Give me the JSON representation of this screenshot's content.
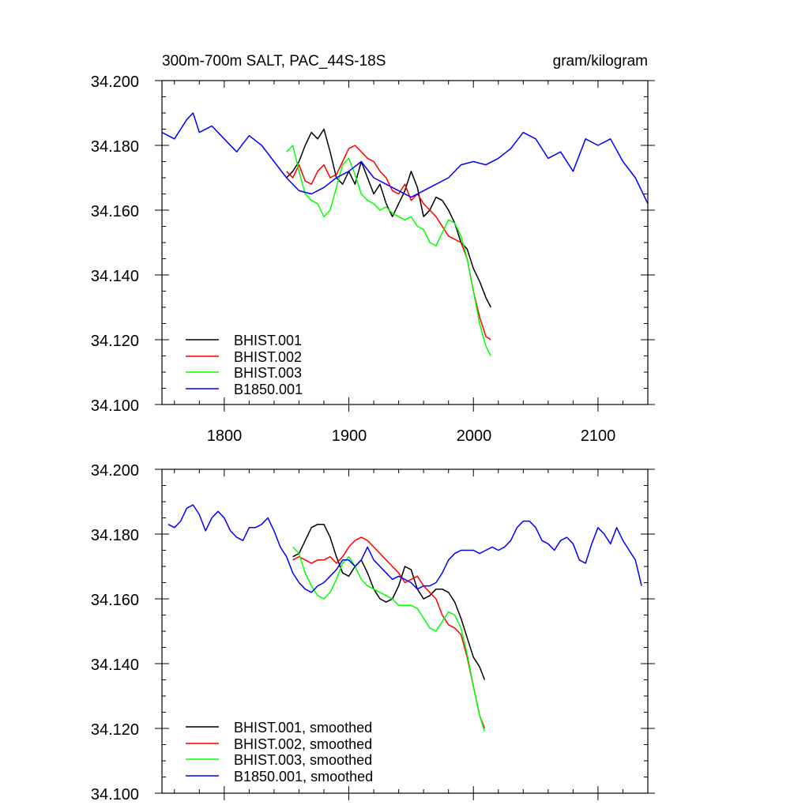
{
  "chart_data": [
    {
      "type": "line",
      "title": "300m-700m SALT, PAC_44S-18S",
      "units": "gram/kilogram",
      "xlim": [
        1750,
        2140
      ],
      "ylim": [
        34.1,
        34.2
      ],
      "x_ticks": [
        "1800",
        "1900",
        "2000",
        "2100"
      ],
      "y_ticks": [
        "34.100",
        "34.120",
        "34.140",
        "34.160",
        "34.180",
        "34.200"
      ],
      "grid": false,
      "legend_position": "bottom-left",
      "series": [
        {
          "name": "BHIST.001",
          "color": "#000000",
          "x": [
            1850,
            1855,
            1860,
            1865,
            1870,
            1875,
            1880,
            1885,
            1890,
            1895,
            1900,
            1905,
            1910,
            1915,
            1920,
            1925,
            1930,
            1935,
            1940,
            1945,
            1950,
            1955,
            1960,
            1965,
            1970,
            1975,
            1980,
            1985,
            1990,
            1995,
            2000,
            2005,
            2010,
            2014
          ],
          "y": [
            34.17,
            34.172,
            34.175,
            34.18,
            34.184,
            34.182,
            34.185,
            34.178,
            34.17,
            34.168,
            34.172,
            34.168,
            34.175,
            34.17,
            34.165,
            34.168,
            34.162,
            34.158,
            34.162,
            34.166,
            34.172,
            34.167,
            34.158,
            34.16,
            34.164,
            34.163,
            34.16,
            34.156,
            34.15,
            34.148,
            34.142,
            34.138,
            34.133,
            34.13
          ]
        },
        {
          "name": "BHIST.002",
          "color": "#ff0000",
          "x": [
            1850,
            1855,
            1860,
            1865,
            1870,
            1875,
            1880,
            1885,
            1890,
            1895,
            1900,
            1905,
            1910,
            1915,
            1920,
            1925,
            1930,
            1935,
            1940,
            1945,
            1950,
            1955,
            1960,
            1965,
            1970,
            1975,
            1980,
            1985,
            1990,
            1995,
            2000,
            2005,
            2010,
            2014
          ],
          "y": [
            34.172,
            34.17,
            34.174,
            34.169,
            34.168,
            34.172,
            34.174,
            34.17,
            34.171,
            34.175,
            34.179,
            34.18,
            34.178,
            34.176,
            34.175,
            34.172,
            34.17,
            34.166,
            34.165,
            34.168,
            34.163,
            34.165,
            34.162,
            34.16,
            34.158,
            34.155,
            34.152,
            34.151,
            34.15,
            34.145,
            34.135,
            34.127,
            34.121,
            34.12
          ]
        },
        {
          "name": "BHIST.003",
          "color": "#00ff00",
          "x": [
            1850,
            1855,
            1860,
            1865,
            1870,
            1875,
            1880,
            1885,
            1890,
            1895,
            1900,
            1905,
            1910,
            1915,
            1920,
            1925,
            1930,
            1935,
            1940,
            1945,
            1950,
            1955,
            1960,
            1965,
            1970,
            1975,
            1980,
            1985,
            1990,
            1995,
            2000,
            2005,
            2010,
            2014
          ],
          "y": [
            34.178,
            34.18,
            34.172,
            34.165,
            34.163,
            34.162,
            34.158,
            34.16,
            34.167,
            34.174,
            34.176,
            34.171,
            34.165,
            34.163,
            34.162,
            34.16,
            34.161,
            34.159,
            34.158,
            34.157,
            34.158,
            34.155,
            34.154,
            34.15,
            34.149,
            34.153,
            34.157,
            34.156,
            34.152,
            34.145,
            34.135,
            34.125,
            34.118,
            34.115
          ]
        },
        {
          "name": "B1850.001",
          "color": "#0000ff",
          "x": [
            1750,
            1760,
            1770,
            1775,
            1780,
            1790,
            1800,
            1810,
            1820,
            1830,
            1840,
            1850,
            1860,
            1870,
            1880,
            1890,
            1900,
            1910,
            1920,
            1930,
            1940,
            1950,
            1960,
            1970,
            1980,
            1990,
            2000,
            2010,
            2020,
            2030,
            2040,
            2050,
            2060,
            2070,
            2080,
            2090,
            2100,
            2110,
            2120,
            2130,
            2140
          ],
          "y": [
            34.184,
            34.182,
            34.188,
            34.19,
            34.184,
            34.186,
            34.182,
            34.178,
            34.183,
            34.18,
            34.175,
            34.17,
            34.166,
            34.165,
            34.167,
            34.17,
            34.172,
            34.175,
            34.17,
            34.168,
            34.166,
            34.164,
            34.166,
            34.168,
            34.17,
            34.174,
            34.175,
            34.174,
            34.176,
            34.179,
            34.184,
            34.182,
            34.176,
            34.178,
            34.172,
            34.182,
            34.18,
            34.182,
            34.175,
            34.17,
            34.162
          ]
        }
      ],
      "legend": [
        "BHIST.001",
        "BHIST.002",
        "BHIST.003",
        "B1850.001"
      ]
    },
    {
      "type": "line",
      "xlim": [
        1750,
        2140
      ],
      "ylim": [
        34.1,
        34.2
      ],
      "y_ticks": [
        "34.100",
        "34.120",
        "34.140",
        "34.160",
        "34.180",
        "34.200"
      ],
      "grid": false,
      "legend_position": "bottom-left",
      "series": [
        {
          "name": "BHIST.001, smoothed",
          "color": "#000000",
          "x": [
            1855,
            1860,
            1865,
            1870,
            1875,
            1880,
            1885,
            1890,
            1895,
            1900,
            1905,
            1910,
            1915,
            1920,
            1925,
            1930,
            1935,
            1940,
            1945,
            1950,
            1955,
            1960,
            1965,
            1970,
            1975,
            1980,
            1985,
            1990,
            1995,
            2000,
            2005,
            2009
          ],
          "y": [
            34.173,
            34.174,
            34.178,
            34.182,
            34.183,
            34.183,
            34.179,
            34.173,
            34.168,
            34.167,
            34.17,
            34.172,
            34.168,
            34.163,
            34.16,
            34.159,
            34.16,
            34.164,
            34.17,
            34.169,
            34.163,
            34.16,
            34.161,
            34.163,
            34.163,
            34.162,
            34.159,
            34.154,
            34.148,
            34.142,
            34.139,
            34.135
          ]
        },
        {
          "name": "BHIST.002, smoothed",
          "color": "#ff0000",
          "x": [
            1855,
            1860,
            1865,
            1870,
            1875,
            1880,
            1885,
            1890,
            1895,
            1900,
            1905,
            1910,
            1915,
            1920,
            1925,
            1930,
            1935,
            1940,
            1945,
            1950,
            1955,
            1960,
            1965,
            1970,
            1975,
            1980,
            1985,
            1990,
            1995,
            2000,
            2005,
            2009
          ],
          "y": [
            34.172,
            34.173,
            34.172,
            34.171,
            34.172,
            34.172,
            34.173,
            34.171,
            34.173,
            34.176,
            34.178,
            34.179,
            34.178,
            34.176,
            34.174,
            34.172,
            34.17,
            34.168,
            34.165,
            34.166,
            34.167,
            34.164,
            34.162,
            34.16,
            34.155,
            34.152,
            34.151,
            34.149,
            34.142,
            34.133,
            34.124,
            34.12
          ]
        },
        {
          "name": "BHIST.003, smoothed",
          "color": "#00ff00",
          "x": [
            1855,
            1860,
            1865,
            1870,
            1875,
            1880,
            1885,
            1890,
            1895,
            1900,
            1905,
            1910,
            1915,
            1920,
            1925,
            1930,
            1935,
            1940,
            1945,
            1950,
            1955,
            1960,
            1965,
            1970,
            1975,
            1980,
            1985,
            1990,
            1995,
            2000,
            2005,
            2009
          ],
          "y": [
            34.176,
            34.174,
            34.168,
            34.164,
            34.161,
            34.16,
            34.162,
            34.166,
            34.171,
            34.173,
            34.17,
            34.166,
            34.164,
            34.163,
            34.162,
            34.161,
            34.16,
            34.158,
            34.158,
            34.158,
            34.157,
            34.154,
            34.151,
            34.15,
            34.153,
            34.156,
            34.155,
            34.151,
            34.143,
            34.133,
            34.124,
            34.119
          ]
        },
        {
          "name": "B1850.001, smoothed",
          "color": "#0000ff",
          "x": [
            1755,
            1760,
            1765,
            1770,
            1775,
            1780,
            1785,
            1790,
            1795,
            1800,
            1805,
            1810,
            1815,
            1820,
            1825,
            1830,
            1835,
            1840,
            1845,
            1850,
            1855,
            1860,
            1865,
            1870,
            1875,
            1880,
            1885,
            1890,
            1895,
            1900,
            1905,
            1910,
            1915,
            1920,
            1925,
            1930,
            1935,
            1940,
            1945,
            1950,
            1955,
            1960,
            1965,
            1970,
            1975,
            1980,
            1985,
            1990,
            1995,
            2000,
            2005,
            2010,
            2015,
            2020,
            2025,
            2030,
            2035,
            2040,
            2045,
            2050,
            2055,
            2060,
            2065,
            2070,
            2075,
            2080,
            2085,
            2090,
            2095,
            2100,
            2105,
            2110,
            2115,
            2120,
            2125,
            2130,
            2135
          ],
          "y": [
            34.183,
            34.182,
            34.184,
            34.188,
            34.189,
            34.186,
            34.181,
            34.185,
            34.187,
            34.185,
            34.181,
            34.179,
            34.178,
            34.182,
            34.182,
            34.183,
            34.185,
            34.181,
            34.176,
            34.173,
            34.168,
            34.165,
            34.163,
            34.162,
            34.164,
            34.165,
            34.167,
            34.169,
            34.172,
            34.172,
            34.17,
            34.172,
            34.176,
            34.172,
            34.17,
            34.168,
            34.166,
            34.167,
            34.166,
            34.165,
            34.163,
            34.164,
            34.164,
            34.165,
            34.168,
            34.172,
            34.174,
            34.175,
            34.175,
            34.175,
            34.174,
            34.175,
            34.176,
            34.175,
            34.176,
            34.178,
            34.182,
            34.184,
            34.184,
            34.182,
            34.178,
            34.177,
            34.175,
            34.178,
            34.179,
            34.177,
            34.172,
            34.171,
            34.177,
            34.182,
            34.18,
            34.177,
            34.182,
            34.178,
            34.175,
            34.172,
            34.164
          ]
        }
      ],
      "legend": [
        "BHIST.001, smoothed",
        "BHIST.002, smoothed",
        "BHIST.003, smoothed",
        "B1850.001, smoothed"
      ]
    }
  ]
}
